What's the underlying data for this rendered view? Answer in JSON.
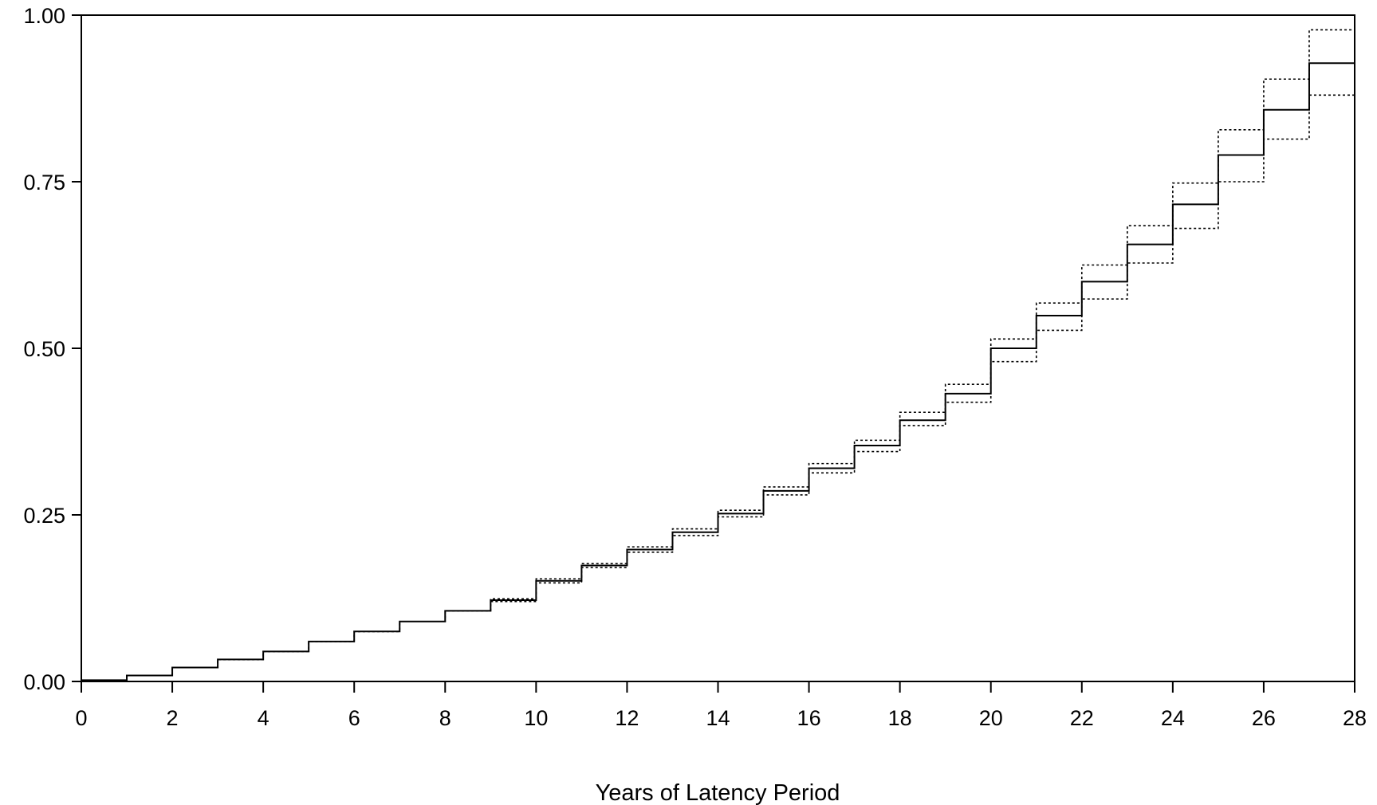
{
  "chart_data": {
    "type": "line",
    "title": "",
    "xlabel": "Years of Latency Period",
    "ylabel": "",
    "xlim": [
      0,
      28
    ],
    "ylim": [
      0,
      1
    ],
    "x_ticks": [
      "0",
      "2",
      "4",
      "6",
      "8",
      "10",
      "12",
      "14",
      "16",
      "18",
      "20",
      "22",
      "24",
      "26",
      "28"
    ],
    "y_ticks": [
      "0.00",
      "0.25",
      "0.50",
      "0.75",
      "1.00"
    ],
    "grid": false,
    "legend": "none",
    "step": true,
    "x": [
      0,
      1,
      2,
      3,
      4,
      5,
      6,
      7,
      8,
      9,
      10,
      11,
      12,
      13,
      14,
      15,
      16,
      17,
      18,
      19,
      20,
      21,
      22,
      23,
      24,
      25,
      26,
      27,
      28
    ],
    "series": [
      {
        "style": "solid",
        "values": [
          0.002,
          0.009,
          0.021,
          0.033,
          0.045,
          0.06,
          0.075,
          0.09,
          0.106,
          0.122,
          0.151,
          0.174,
          0.198,
          0.224,
          0.252,
          0.286,
          0.32,
          0.354,
          0.392,
          0.432,
          0.5,
          0.549,
          0.6,
          0.656,
          0.716,
          0.79,
          0.858,
          0.928,
          0.928
        ]
      },
      {
        "style": "dotted",
        "values": [
          0.002,
          0.009,
          0.021,
          0.033,
          0.045,
          0.06,
          0.075,
          0.09,
          0.106,
          0.124,
          0.154,
          0.177,
          0.202,
          0.229,
          0.257,
          0.292,
          0.327,
          0.362,
          0.404,
          0.446,
          0.514,
          0.568,
          0.625,
          0.684,
          0.748,
          0.828,
          0.904,
          0.978,
          0.978
        ]
      },
      {
        "style": "dotted",
        "values": [
          0.002,
          0.009,
          0.021,
          0.033,
          0.045,
          0.06,
          0.075,
          0.09,
          0.106,
          0.12,
          0.148,
          0.171,
          0.194,
          0.219,
          0.247,
          0.28,
          0.313,
          0.345,
          0.384,
          0.419,
          0.48,
          0.527,
          0.574,
          0.628,
          0.68,
          0.75,
          0.814,
          0.88,
          0.88
        ]
      }
    ]
  }
}
